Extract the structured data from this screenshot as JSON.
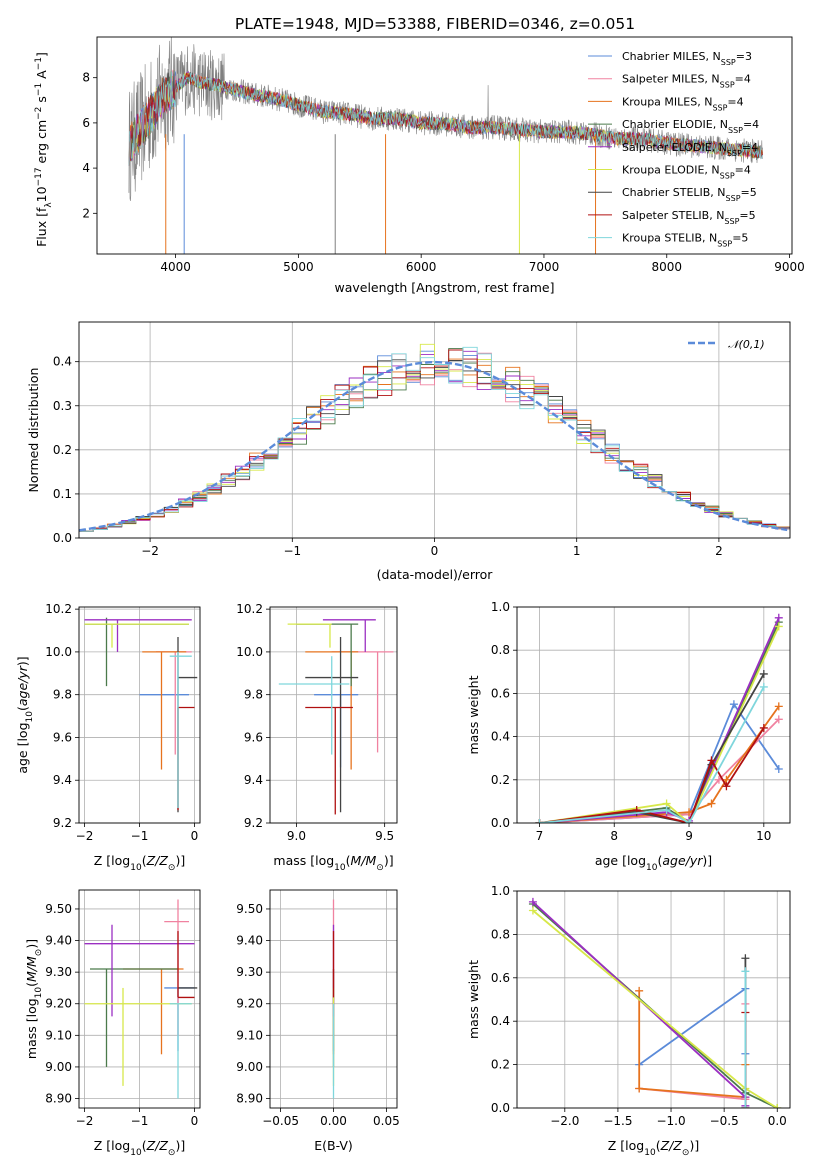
{
  "title": "PLATE=1948, MJD=53388, FIBERID=0346, z=0.051",
  "palette": [
    {
      "name": "Chabrier MILES",
      "nssp": "3",
      "color": "#5b8bd9"
    },
    {
      "name": "Salpeter MILES",
      "nssp": "4",
      "color": "#f082a0"
    },
    {
      "name": "Kroupa MILES",
      "nssp": "4",
      "color": "#e6731e"
    },
    {
      "name": "Chabrier ELODIE",
      "nssp": "4",
      "color": "#4b7a4b"
    },
    {
      "name": "Salpeter ELODIE",
      "nssp": "4",
      "color": "#9b2fc2"
    },
    {
      "name": "Kroupa ELODIE",
      "nssp": "4",
      "color": "#d7e84a"
    },
    {
      "name": "Chabrier STELIB",
      "nssp": "5",
      "color": "#444444"
    },
    {
      "name": "Salpeter STELIB",
      "nssp": "5",
      "color": "#b01010"
    },
    {
      "name": "Kroupa STELIB",
      "nssp": "5",
      "color": "#7fd6dc"
    }
  ],
  "chart_data": [
    {
      "id": "spectrum",
      "type": "line",
      "xlabel": "wavelength [Angstrom, rest frame]",
      "ylabel": "Flux [f_λ10^-17 erg cm^-2 s^-1 A^-1]",
      "xlim": [
        3360,
        9020
      ],
      "ylim": [
        0.2,
        9.8
      ],
      "xticks": [
        4000,
        5000,
        6000,
        7000,
        8000,
        9000
      ],
      "yticks": [
        2,
        4,
        6,
        8
      ],
      "legend_position": "upper-right",
      "data_color": "#808080",
      "data_anchors": [
        [
          3620,
          5.0
        ],
        [
          3700,
          5.6
        ],
        [
          3800,
          6.4
        ],
        [
          3900,
          7.2
        ],
        [
          4000,
          7.6
        ],
        [
          4100,
          8.0
        ],
        [
          4200,
          7.8
        ],
        [
          4400,
          7.6
        ],
        [
          4600,
          7.3
        ],
        [
          4800,
          7.1
        ],
        [
          5000,
          6.8
        ],
        [
          5200,
          6.5
        ],
        [
          5400,
          6.4
        ],
        [
          5600,
          6.2
        ],
        [
          5800,
          6.2
        ],
        [
          6000,
          6.0
        ],
        [
          6200,
          5.95
        ],
        [
          6400,
          5.8
        ],
        [
          6600,
          5.8
        ],
        [
          6800,
          5.7
        ],
        [
          7000,
          5.6
        ],
        [
          7200,
          5.6
        ],
        [
          7400,
          5.5
        ],
        [
          7600,
          5.3
        ],
        [
          7800,
          5.3
        ],
        [
          8000,
          5.1
        ],
        [
          8200,
          5.0
        ],
        [
          8400,
          4.9
        ],
        [
          8600,
          4.8
        ],
        [
          8780,
          4.7
        ]
      ]
    },
    {
      "id": "residuals",
      "type": "step",
      "xlabel": "(data-model)/error",
      "ylabel": "Normed distribution",
      "xlim": [
        -2.5,
        2.5
      ],
      "ylim": [
        0,
        0.49
      ],
      "xticks": [
        -2,
        -1,
        0,
        1,
        2
      ],
      "yticks": [
        0.0,
        0.1,
        0.2,
        0.3,
        0.4
      ],
      "grid": true,
      "legend": "𝒩(0,1)",
      "legend_position": "upper-right",
      "gaussian": {
        "mean": 0,
        "sigma": 1,
        "color": "#5b8bd9"
      }
    },
    {
      "id": "age-vs-z",
      "type": "errorbar",
      "xlabel": "Z [log10(Z/Z⊙)]",
      "ylabel": "age  [log10(age/yr)]",
      "xlim": [
        -2.1,
        0.1
      ],
      "ylim": [
        9.2,
        10.21
      ],
      "xticks": [
        -2,
        -1,
        0
      ],
      "yticks": [
        9.2,
        9.4,
        9.6,
        9.8,
        10.0,
        10.2
      ],
      "grid": true,
      "points": [
        {
          "model": 0,
          "x": -0.55,
          "y": 9.8,
          "xlo": -1.0,
          "xhi": -0.1,
          "ylo": 9.8,
          "yhi": 9.8
        },
        {
          "model": 1,
          "x": -0.35,
          "y": 10.0,
          "xlo": -0.7,
          "xhi": -0.05,
          "ylo": 9.52,
          "yhi": 10.0
        },
        {
          "model": 2,
          "x": -0.6,
          "y": 10.0,
          "xlo": -0.95,
          "xhi": -0.15,
          "ylo": 9.45,
          "yhi": 10.0
        },
        {
          "model": 3,
          "x": -1.6,
          "y": 10.13,
          "xlo": -2.0,
          "xhi": -0.1,
          "ylo": 9.84,
          "yhi": 10.16
        },
        {
          "model": 4,
          "x": -1.4,
          "y": 10.15,
          "xlo": -2.0,
          "xhi": -0.05,
          "ylo": 10.0,
          "yhi": 10.15
        },
        {
          "model": 5,
          "x": -1.5,
          "y": 10.13,
          "xlo": -2.0,
          "xhi": -0.1,
          "ylo": 10.02,
          "yhi": 10.13
        },
        {
          "model": 6,
          "x": -0.3,
          "y": 9.88,
          "xlo": -0.3,
          "xhi": 0.05,
          "ylo": 9.25,
          "yhi": 10.07
        },
        {
          "model": 7,
          "x": -0.3,
          "y": 9.74,
          "xlo": -0.3,
          "xhi": 0.0,
          "ylo": 9.26,
          "yhi": 9.74
        },
        {
          "model": 8,
          "x": -0.3,
          "y": 9.98,
          "xlo": -0.45,
          "xhi": -0.05,
          "ylo": 9.27,
          "yhi": 10.0
        }
      ]
    },
    {
      "id": "age-vs-mass",
      "type": "errorbar",
      "xlabel": "mass [log10(M/M⊙)]",
      "ylabel": "",
      "xlim": [
        8.85,
        9.57
      ],
      "ylim": [
        9.2,
        10.21
      ],
      "xticks": [
        9.0,
        9.5
      ],
      "yticks": [
        9.2,
        9.4,
        9.6,
        9.8,
        10.0,
        10.2
      ],
      "grid": true,
      "points": [
        {
          "model": 0,
          "x": 9.25,
          "y": 9.8,
          "xlo": 9.1,
          "xhi": 9.35,
          "ylo": 9.46,
          "yhi": 9.8
        },
        {
          "model": 1,
          "x": 9.46,
          "y": 10.0,
          "xlo": 9.2,
          "xhi": 9.55,
          "ylo": 9.53,
          "yhi": 10.0
        },
        {
          "model": 2,
          "x": 9.31,
          "y": 10.0,
          "xlo": 9.05,
          "xhi": 9.35,
          "ylo": 9.45,
          "yhi": 10.0
        },
        {
          "model": 3,
          "x": 9.31,
          "y": 10.13,
          "xlo": 9.0,
          "xhi": 9.35,
          "ylo": 9.84,
          "yhi": 10.13
        },
        {
          "model": 4,
          "x": 9.39,
          "y": 10.15,
          "xlo": 9.15,
          "xhi": 9.45,
          "ylo": 10.0,
          "yhi": 10.15
        },
        {
          "model": 5,
          "x": 9.19,
          "y": 10.13,
          "xlo": 8.95,
          "xhi": 9.2,
          "ylo": 10.02,
          "yhi": 10.13
        },
        {
          "model": 6,
          "x": 9.25,
          "y": 9.88,
          "xlo": 9.05,
          "xhi": 9.35,
          "ylo": 9.25,
          "yhi": 10.07
        },
        {
          "model": 7,
          "x": 9.22,
          "y": 9.74,
          "xlo": 9.05,
          "xhi": 9.32,
          "ylo": 9.24,
          "yhi": 9.74
        },
        {
          "model": 8,
          "x": 9.2,
          "y": 9.85,
          "xlo": 8.9,
          "xhi": 9.3,
          "ylo": 9.52,
          "yhi": 9.98
        }
      ]
    },
    {
      "id": "weight-vs-age",
      "type": "line",
      "xlabel": "age  [log10(age/yr)]",
      "ylabel": "mass weight",
      "xlim": [
        6.7,
        10.35
      ],
      "ylim": [
        0,
        1
      ],
      "xticks": [
        7,
        8,
        9,
        10
      ],
      "yticks": [
        0.0,
        0.2,
        0.4,
        0.6,
        0.8,
        1.0
      ],
      "grid": true,
      "series": [
        {
          "model": 0,
          "points": [
            [
              7.0,
              0.0
            ],
            [
              9.0,
              0.04
            ],
            [
              9.6,
              0.55
            ],
            [
              10.2,
              0.25
            ]
          ]
        },
        {
          "model": 1,
          "points": [
            [
              7.0,
              0.0
            ],
            [
              9.0,
              0.04
            ],
            [
              9.4,
              0.2
            ],
            [
              10.2,
              0.48
            ]
          ]
        },
        {
          "model": 2,
          "points": [
            [
              7.0,
              0.0
            ],
            [
              9.0,
              0.05
            ],
            [
              9.3,
              0.09
            ],
            [
              9.5,
              0.2
            ],
            [
              10.2,
              0.54
            ]
          ]
        },
        {
          "model": 3,
          "points": [
            [
              7.0,
              0.0
            ],
            [
              8.7,
              0.07
            ],
            [
              9.0,
              0.0
            ],
            [
              10.2,
              0.93
            ]
          ]
        },
        {
          "model": 4,
          "points": [
            [
              7.0,
              0.0
            ],
            [
              8.7,
              0.05
            ],
            [
              9.0,
              0.01
            ],
            [
              10.2,
              0.95
            ]
          ]
        },
        {
          "model": 5,
          "points": [
            [
              7.0,
              0.0
            ],
            [
              8.7,
              0.09
            ],
            [
              9.0,
              0.0
            ],
            [
              10.2,
              0.91
            ]
          ]
        },
        {
          "model": 6,
          "points": [
            [
              7.0,
              0.0
            ],
            [
              8.3,
              0.05
            ],
            [
              9.0,
              0.0
            ],
            [
              9.3,
              0.27
            ],
            [
              10.0,
              0.69
            ]
          ]
        },
        {
          "model": 7,
          "points": [
            [
              7.0,
              0.0
            ],
            [
              8.3,
              0.06
            ],
            [
              9.0,
              0.0
            ],
            [
              9.3,
              0.29
            ],
            [
              9.5,
              0.17
            ],
            [
              10.0,
              0.44
            ]
          ]
        },
        {
          "model": 8,
          "points": [
            [
              7.0,
              0.0
            ],
            [
              8.7,
              0.06
            ],
            [
              9.0,
              0.0
            ],
            [
              10.0,
              0.63
            ]
          ]
        }
      ]
    },
    {
      "id": "mass-vs-z",
      "type": "errorbar",
      "xlabel": "Z [log10(Z/Z⊙)]",
      "ylabel": "mass [log10(M/M⊙)]",
      "xlim": [
        -2.1,
        0.1
      ],
      "ylim": [
        8.87,
        9.56
      ],
      "xticks": [
        -2,
        -1,
        0
      ],
      "yticks": [
        8.9,
        9.0,
        9.1,
        9.2,
        9.3,
        9.4,
        9.5
      ],
      "grid": true,
      "points": [
        {
          "model": 0,
          "x": -0.3,
          "y": 9.25,
          "xlo": -0.55,
          "xhi": 0.0,
          "ylo": 9.05,
          "yhi": 9.25
        },
        {
          "model": 1,
          "x": -0.3,
          "y": 9.46,
          "xlo": -0.55,
          "xhi": -0.1,
          "ylo": 9.1,
          "yhi": 9.53
        },
        {
          "model": 2,
          "x": -0.6,
          "y": 9.31,
          "xlo": -1.3,
          "xhi": -0.2,
          "ylo": 9.04,
          "yhi": 9.31
        },
        {
          "model": 3,
          "x": -1.6,
          "y": 9.31,
          "xlo": -1.9,
          "xhi": -0.3,
          "ylo": 9.0,
          "yhi": 9.31
        },
        {
          "model": 4,
          "x": -1.5,
          "y": 9.39,
          "xlo": -2.0,
          "xhi": 0.0,
          "ylo": 9.16,
          "yhi": 9.45
        },
        {
          "model": 5,
          "x": -1.3,
          "y": 9.2,
          "xlo": -2.0,
          "xhi": -0.05,
          "ylo": 8.94,
          "yhi": 9.25
        },
        {
          "model": 6,
          "x": -0.3,
          "y": 9.25,
          "xlo": -0.3,
          "xhi": 0.05,
          "ylo": 9.25,
          "yhi": 9.25
        },
        {
          "model": 7,
          "x": -0.3,
          "y": 9.22,
          "xlo": -0.3,
          "xhi": 0.0,
          "ylo": 9.22,
          "yhi": 9.43
        },
        {
          "model": 8,
          "x": -0.3,
          "y": 9.2,
          "xlo": -0.45,
          "xhi": -0.05,
          "ylo": 8.9,
          "yhi": 9.2
        }
      ]
    },
    {
      "id": "mass-vs-ebv",
      "type": "errorbar",
      "xlabel": "E(B-V)",
      "ylabel": "",
      "xlim": [
        -0.06,
        0.06
      ],
      "ylim": [
        8.87,
        9.56
      ],
      "xticks": [
        -0.05,
        0.0,
        0.05
      ],
      "yticks": [
        8.9,
        9.0,
        9.1,
        9.2,
        9.3,
        9.4,
        9.5
      ],
      "grid": true,
      "points": [
        {
          "model": 0,
          "x": 0.0,
          "y": 9.25,
          "xlo": 0.0,
          "xhi": 0.0,
          "ylo": 9.05,
          "yhi": 9.25
        },
        {
          "model": 1,
          "x": 0.0,
          "y": 9.46,
          "xlo": 0.0,
          "xhi": 0.0,
          "ylo": 9.1,
          "yhi": 9.53
        },
        {
          "model": 2,
          "x": 0.0,
          "y": 9.31,
          "xlo": 0.0,
          "xhi": 0.0,
          "ylo": 9.04,
          "yhi": 9.31
        },
        {
          "model": 3,
          "x": 0.0,
          "y": 9.31,
          "xlo": 0.0,
          "xhi": 0.0,
          "ylo": 9.0,
          "yhi": 9.31
        },
        {
          "model": 4,
          "x": 0.0,
          "y": 9.39,
          "xlo": 0.0,
          "xhi": 0.0,
          "ylo": 9.16,
          "yhi": 9.45
        },
        {
          "model": 5,
          "x": 0.0,
          "y": 9.2,
          "xlo": 0.0,
          "xhi": 0.0,
          "ylo": 8.94,
          "yhi": 9.25
        },
        {
          "model": 6,
          "x": 0.0,
          "y": 9.25,
          "xlo": 0.0,
          "xhi": 0.0,
          "ylo": 9.25,
          "yhi": 9.25
        },
        {
          "model": 7,
          "x": 0.0,
          "y": 9.22,
          "xlo": 0.0,
          "xhi": 0.0,
          "ylo": 9.22,
          "yhi": 9.43
        },
        {
          "model": 8,
          "x": 0.0,
          "y": 9.2,
          "xlo": 0.0,
          "xhi": 0.0,
          "ylo": 8.9,
          "yhi": 9.2
        }
      ]
    },
    {
      "id": "weight-vs-z",
      "type": "line",
      "xlabel": "Z [log10(Z/Z⊙)]",
      "ylabel": "mass weight",
      "xlim": [
        -2.45,
        0.12
      ],
      "ylim": [
        0,
        1
      ],
      "xticks": [
        -2.0,
        -1.5,
        -1.0,
        -0.5,
        0.0
      ],
      "yticks": [
        0.0,
        0.2,
        0.4,
        0.6,
        0.8,
        1.0
      ],
      "grid": true,
      "series": [
        {
          "model": 0,
          "points": [
            [
              -1.3,
              0.2
            ],
            [
              -0.3,
              0.55
            ],
            [
              -0.3,
              0.25
            ]
          ]
        },
        {
          "model": 1,
          "points": [
            [
              -1.3,
              0.09
            ],
            [
              -0.3,
              0.04
            ],
            [
              -0.3,
              0.48
            ]
          ]
        },
        {
          "model": 2,
          "points": [
            [
              -1.3,
              0.54
            ],
            [
              -1.3,
              0.09
            ],
            [
              -0.3,
              0.05
            ],
            [
              -0.3,
              0.2
            ]
          ]
        },
        {
          "model": 3,
          "points": [
            [
              -2.3,
              0.94
            ],
            [
              -0.3,
              0.07
            ],
            [
              0.0,
              0.0
            ]
          ]
        },
        {
          "model": 4,
          "points": [
            [
              -2.3,
              0.95
            ],
            [
              -0.3,
              0.05
            ],
            [
              -0.3,
              0.01
            ]
          ]
        },
        {
          "model": 5,
          "points": [
            [
              -2.3,
              0.91
            ],
            [
              -0.3,
              0.09
            ],
            [
              0.0,
              0.0
            ]
          ]
        },
        {
          "model": 6,
          "points": [
            [
              -0.3,
              0.0
            ],
            [
              -0.3,
              0.69
            ]
          ]
        },
        {
          "model": 7,
          "points": [
            [
              -0.3,
              0.0
            ],
            [
              -0.3,
              0.44
            ]
          ]
        },
        {
          "model": 8,
          "points": [
            [
              -0.3,
              0.0
            ],
            [
              -0.3,
              0.63
            ]
          ]
        }
      ]
    }
  ]
}
